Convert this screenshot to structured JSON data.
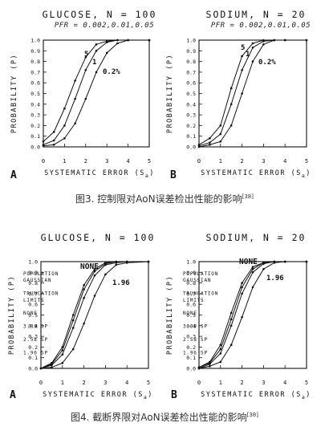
{
  "figure3": {
    "caption": "图3. 控制限对AoN误差检出性能的影响",
    "ref": "[38]"
  },
  "figure4": {
    "caption": "图4. 截断界限对AoN误差检出性能的影响",
    "ref": "[38]"
  },
  "chart_data": [
    {
      "id": "fig3A",
      "panel_label": "A",
      "type": "line",
      "title": "GLUCOSE, N = 100",
      "subtitle": "PFR = 0.002,0.01,0.05",
      "xlabel_main": "SYSTEMATIC ERROR (S",
      "xlabel_sub": "a",
      "xlabel_close": ")",
      "ylabel": "PROBABILITY (P)",
      "xlim": [
        0,
        5
      ],
      "ylim": [
        0,
        1
      ],
      "x_ticks": [
        "0",
        "1",
        "2",
        "3",
        "4",
        "5"
      ],
      "y_ticks": [
        "0.0",
        "0.1",
        "0.2",
        "0.3",
        "0.4",
        "0.5",
        "0.6",
        "0.7",
        "0.8",
        "0.9",
        "1.0"
      ],
      "grid": false,
      "series": [
        {
          "name": "5",
          "x": [
            0,
            0.5,
            1,
            1.5,
            2,
            2.5,
            3,
            3.5,
            4,
            5
          ],
          "y": [
            0.05,
            0.14,
            0.36,
            0.62,
            0.84,
            0.96,
            0.99,
            1.0,
            1.0,
            1.0
          ]
        },
        {
          "name": "1",
          "x": [
            0,
            0.5,
            1,
            1.5,
            2,
            2.5,
            3,
            3.5,
            4,
            5
          ],
          "y": [
            0.02,
            0.06,
            0.2,
            0.45,
            0.72,
            0.9,
            0.98,
            1.0,
            1.0,
            1.0
          ]
        },
        {
          "name": "0.2%",
          "x": [
            0,
            0.5,
            1,
            1.5,
            2,
            2.5,
            3,
            3.5,
            4,
            5
          ],
          "y": [
            0.01,
            0.02,
            0.08,
            0.22,
            0.45,
            0.7,
            0.88,
            0.97,
            1.0,
            1.0
          ]
        }
      ]
    },
    {
      "id": "fig3B",
      "panel_label": "B",
      "type": "line",
      "title": "SODIUM, N = 20",
      "subtitle": "PFR = 0.002,0.01,0.05",
      "xlabel_main": "SYSTEMATIC ERROR (S",
      "xlabel_sub": "a",
      "xlabel_close": ")",
      "ylabel": "PROBABILITY (P)",
      "xlim": [
        0,
        5
      ],
      "ylim": [
        0,
        1
      ],
      "x_ticks": [
        "0",
        "1",
        "2",
        "3",
        "4",
        "5"
      ],
      "y_ticks": [
        "0.0",
        "0.1",
        "0.2",
        "0.3",
        "0.4",
        "0.5",
        "0.6",
        "0.7",
        "0.8",
        "0.9",
        "1.0"
      ],
      "grid": false,
      "series": [
        {
          "name": "5",
          "x": [
            0,
            0.5,
            1,
            1.5,
            2,
            2.5,
            3,
            3.5,
            4,
            5
          ],
          "y": [
            0.02,
            0.08,
            0.2,
            0.55,
            0.85,
            0.97,
            1.0,
            1.0,
            1.0,
            1.0
          ]
        },
        {
          "name": "1",
          "x": [
            0,
            0.5,
            1,
            1.5,
            2,
            2.5,
            3,
            3.5,
            4,
            5
          ],
          "y": [
            0.01,
            0.04,
            0.12,
            0.4,
            0.72,
            0.93,
            0.99,
            1.0,
            1.0,
            1.0
          ]
        },
        {
          "name": "0.2%",
          "x": [
            0,
            0.5,
            1,
            1.5,
            2,
            2.5,
            3,
            3.5,
            4,
            5
          ],
          "y": [
            0.0,
            0.02,
            0.05,
            0.2,
            0.5,
            0.8,
            0.96,
            1.0,
            1.0,
            1.0
          ]
        }
      ]
    },
    {
      "id": "fig4A",
      "panel_label": "A",
      "type": "line",
      "title": "GLUCOSE, N = 100",
      "xlabel_main": "SYSTEMATIC ERROR (S",
      "xlabel_sub": "a",
      "xlabel_close": ")",
      "ylabel": "PROBABILITY (P)",
      "xlim": [
        0,
        5
      ],
      "ylim": [
        0,
        1
      ],
      "x_ticks": [
        "0",
        "1",
        "2",
        "3",
        "4",
        "5"
      ],
      "y_ticks": [
        "0.0",
        "0.1",
        "0.2",
        "0.3",
        "0.4",
        "0.5",
        "0.6",
        "0.7",
        "0.8",
        "0.9",
        "1.0"
      ],
      "grid": false,
      "legend_lines": [
        "POPULATION",
        "GAUSSIAN",
        "",
        "TRUNCATION",
        "LIMITS",
        "",
        "NONE",
        "",
        "3.09 SP",
        "",
        "2.58 SP",
        "",
        "1.96 SP"
      ],
      "series": [
        {
          "name": "NONE",
          "x": [
            0,
            0.5,
            1,
            1.5,
            2,
            2.5,
            3,
            3.5,
            4,
            5
          ],
          "y": [
            0.0,
            0.05,
            0.2,
            0.5,
            0.78,
            0.93,
            0.99,
            1.0,
            1.0,
            1.0
          ]
        },
        {
          "name": "3.09 SP",
          "x": [
            0,
            0.5,
            1,
            1.5,
            2,
            2.5,
            3,
            3.5,
            4,
            5
          ],
          "y": [
            0.0,
            0.04,
            0.17,
            0.45,
            0.74,
            0.91,
            0.98,
            1.0,
            1.0,
            1.0
          ]
        },
        {
          "name": "2.58 SP",
          "x": [
            0,
            0.5,
            1,
            1.5,
            2,
            2.5,
            3,
            3.5,
            4,
            5
          ],
          "y": [
            0.0,
            0.03,
            0.13,
            0.38,
            0.66,
            0.87,
            0.97,
            0.99,
            1.0,
            1.0
          ]
        },
        {
          "name": "1.96",
          "x": [
            0,
            0.5,
            1,
            1.5,
            2,
            2.5,
            3,
            3.5,
            4,
            5
          ],
          "y": [
            0.0,
            0.01,
            0.05,
            0.18,
            0.42,
            0.68,
            0.88,
            0.97,
            0.99,
            1.0
          ]
        }
      ]
    },
    {
      "id": "fig4B",
      "panel_label": "B",
      "type": "line",
      "title": "SODIUM, N = 20",
      "xlabel_main": "SYSTEMATIC ERROR (S",
      "xlabel_sub": "a",
      "xlabel_close": ")",
      "ylabel": "PROBABILITY (P)",
      "xlim": [
        0,
        5
      ],
      "ylim": [
        0,
        1
      ],
      "x_ticks": [
        "0",
        "1",
        "2",
        "3",
        "4",
        "5"
      ],
      "y_ticks": [
        "0.0",
        "0.1",
        "0.2",
        "0.3",
        "0.4",
        "0.5",
        "0.6",
        "0.7",
        "0.8",
        "0.9",
        "1.0"
      ],
      "grid": false,
      "legend_lines": [
        "POPULATION",
        "GAUSSIAN",
        "",
        "TRUNCATION",
        "LIMITS",
        "",
        "NONE",
        "",
        "3.09 SP",
        "",
        "2.58 SP",
        "",
        "1.96 SP"
      ],
      "series": [
        {
          "name": "NONE",
          "x": [
            0,
            0.5,
            1,
            1.5,
            2,
            2.5,
            3,
            3.5,
            4,
            5
          ],
          "y": [
            0.01,
            0.06,
            0.22,
            0.52,
            0.8,
            0.95,
            0.99,
            1.0,
            1.0,
            1.0
          ]
        },
        {
          "name": "3.09 SP",
          "x": [
            0,
            0.5,
            1,
            1.5,
            2,
            2.5,
            3,
            3.5,
            4,
            5
          ],
          "y": [
            0.01,
            0.05,
            0.18,
            0.46,
            0.76,
            0.93,
            0.99,
            1.0,
            1.0,
            1.0
          ]
        },
        {
          "name": "2.58 SP",
          "x": [
            0,
            0.5,
            1,
            1.5,
            2,
            2.5,
            3,
            3.5,
            4,
            5
          ],
          "y": [
            0.0,
            0.04,
            0.14,
            0.4,
            0.7,
            0.9,
            0.98,
            1.0,
            1.0,
            1.0
          ]
        },
        {
          "name": "1.96",
          "x": [
            0,
            0.5,
            1,
            1.5,
            2,
            2.5,
            3,
            3.5,
            4,
            5
          ],
          "y": [
            0.0,
            0.02,
            0.06,
            0.22,
            0.48,
            0.76,
            0.93,
            0.99,
            1.0,
            1.0
          ]
        }
      ]
    }
  ]
}
